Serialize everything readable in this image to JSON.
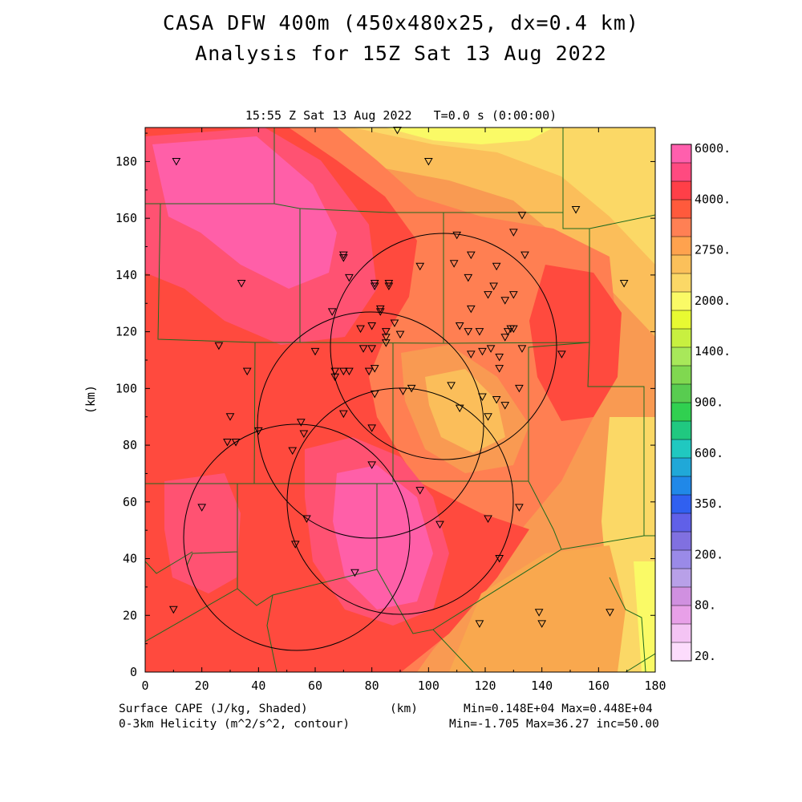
{
  "title": {
    "line1": "CASA DFW 400m (450x480x25, dx=0.4 km)",
    "line2": "Analysis for 15Z Sat 13 Aug 2022"
  },
  "subtitle": "15:55 Z Sat 13 Aug 2022   T=0.0 s (0:00:00)",
  "footer": {
    "left1": "Surface CAPE (J/kg, Shaded)",
    "left2": "0-3km Helicity (m^2/s^2, contour)",
    "center": "(km)",
    "right1": "Min=0.148E+04 Max=0.448E+04",
    "right2": "Min=-1.705 Max=36.27 inc=50.00"
  },
  "axes": {
    "ylabel": "(km)",
    "xlim": [
      0,
      180
    ],
    "ylim": [
      0,
      192
    ],
    "xticks": [
      "0",
      "20",
      "40",
      "60",
      "80",
      "100",
      "120",
      "140",
      "160",
      "180"
    ],
    "yticks": [
      "0",
      "20",
      "40",
      "60",
      "80",
      "100",
      "120",
      "140",
      "160",
      "180"
    ]
  },
  "colorbar": {
    "labels": [
      "6000.",
      "4000.",
      "2750.",
      "2000.",
      "1400.",
      "900.",
      "600.",
      "350.",
      "200.",
      "80.",
      "20."
    ],
    "colors": [
      "#ff5fad",
      "#ff4a80",
      "#ff3f48",
      "#ff5a3c",
      "#ff8054",
      "#ffa24e",
      "#fbc05a",
      "#fbd866",
      "#fafa66",
      "#e8fa32",
      "#c8f040",
      "#a8e85a",
      "#80d850",
      "#58cc50",
      "#30d050",
      "#20c880",
      "#20c8c0",
      "#20a8d8",
      "#2088e8",
      "#3060f0",
      "#6060e8",
      "#8070e0",
      "#9a8ae8",
      "#b8a0e8",
      "#d090e0",
      "#e8a0e8",
      "#f4c4f4",
      "#fcdcfc"
    ]
  },
  "chart_data": {
    "type": "map",
    "field": "Surface CAPE (J/kg)",
    "contour_field": "0-3km Helicity (m^2/s^2)",
    "stations_km": [
      [
        11,
        180
      ],
      [
        10,
        22
      ],
      [
        20,
        58
      ],
      [
        26,
        115
      ],
      [
        30,
        90
      ],
      [
        32,
        81
      ],
      [
        29,
        81
      ],
      [
        34,
        137
      ],
      [
        36,
        106
      ],
      [
        40,
        85
      ],
      [
        52,
        78
      ],
      [
        53,
        45
      ],
      [
        55,
        88
      ],
      [
        56,
        84
      ],
      [
        57,
        54
      ],
      [
        60,
        113
      ],
      [
        66,
        127
      ],
      [
        67,
        104
      ],
      [
        67,
        106
      ],
      [
        70,
        91
      ],
      [
        70,
        106
      ],
      [
        72,
        106
      ],
      [
        70,
        147
      ],
      [
        70,
        146
      ],
      [
        72,
        139
      ],
      [
        74,
        35
      ],
      [
        76,
        121
      ],
      [
        77,
        114
      ],
      [
        79,
        106
      ],
      [
        80,
        86
      ],
      [
        80,
        122
      ],
      [
        80,
        73
      ],
      [
        80,
        114
      ],
      [
        81,
        107
      ],
      [
        81,
        137
      ],
      [
        81,
        136
      ],
      [
        81,
        98
      ],
      [
        83,
        127
      ],
      [
        83,
        128
      ],
      [
        85,
        120
      ],
      [
        85,
        116
      ],
      [
        85,
        118
      ],
      [
        86,
        137
      ],
      [
        86,
        136
      ],
      [
        88,
        123
      ],
      [
        89,
        191
      ],
      [
        90,
        119
      ],
      [
        91,
        99
      ],
      [
        94,
        100
      ],
      [
        97,
        64
      ],
      [
        97,
        143
      ],
      [
        100,
        180
      ],
      [
        104,
        52
      ],
      [
        108,
        101
      ],
      [
        109,
        144
      ],
      [
        110,
        154
      ],
      [
        111,
        93
      ],
      [
        111,
        122
      ],
      [
        114,
        139
      ],
      [
        114,
        120
      ],
      [
        115,
        112
      ],
      [
        115,
        128
      ],
      [
        115,
        147
      ],
      [
        118,
        17
      ],
      [
        118,
        120
      ],
      [
        119,
        113
      ],
      [
        119,
        97
      ],
      [
        121,
        54
      ],
      [
        121,
        90
      ],
      [
        121,
        133
      ],
      [
        122,
        114
      ],
      [
        123,
        136
      ],
      [
        124,
        143
      ],
      [
        124,
        96
      ],
      [
        125,
        111
      ],
      [
        125,
        40
      ],
      [
        125,
        107
      ],
      [
        127,
        131
      ],
      [
        127,
        94
      ],
      [
        127,
        118
      ],
      [
        128,
        120
      ],
      [
        129,
        121
      ],
      [
        130,
        133
      ],
      [
        130,
        121
      ],
      [
        130,
        155
      ],
      [
        132,
        58
      ],
      [
        132,
        100
      ],
      [
        133,
        114
      ],
      [
        133,
        161
      ],
      [
        134,
        147
      ],
      [
        139,
        21
      ],
      [
        140,
        17
      ],
      [
        147,
        112
      ],
      [
        152,
        163
      ],
      [
        164,
        21
      ],
      [
        169,
        137
      ]
    ]
  }
}
